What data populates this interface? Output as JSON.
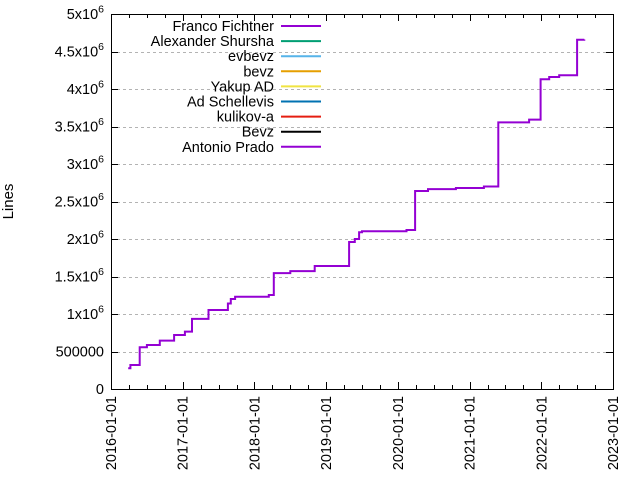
{
  "chart_data": {
    "type": "line",
    "step_mode": "post",
    "title": "",
    "xlabel": "",
    "ylabel": "Lines",
    "background_color": "#ffffff",
    "axis_color": "#000000",
    "text_color": "#000000",
    "x_axis": {
      "range_years": [
        2016,
        2023
      ],
      "tick_values_years": [
        2016,
        2017,
        2018,
        2019,
        2020,
        2021,
        2022,
        2023
      ],
      "tick_labels": [
        "2016-01-01",
        "2017-01-01",
        "2018-01-01",
        "2019-01-01",
        "2020-01-01",
        "2021-01-01",
        "2022-01-01",
        "2023-01-01"
      ],
      "minor_ticks_per_interval": 3,
      "labels_rotated_degrees": -90
    },
    "y_axis": {
      "range": [
        0,
        5000000
      ],
      "tick_values": [
        0,
        500000,
        1000000,
        1500000,
        2000000,
        2500000,
        3000000,
        3500000,
        4000000,
        4500000,
        5000000
      ],
      "tick_labels": [
        "0",
        "500000",
        "1x10^6",
        "1.5x10^6",
        "2x10^6",
        "2.5x10^6",
        "3x10^6",
        "3.5x10^6",
        "4x10^6",
        "4.5x10^6",
        "5x10^6"
      ]
    },
    "grid": {
      "horizontal": true,
      "vertical": false,
      "style": "dashed",
      "color": "#b3b3b3"
    },
    "legend": {
      "position": "top-left-inside",
      "entries": [
        {
          "label": "Franco Fichtner",
          "color": "#9400d3"
        },
        {
          "label": "Alexander Shursha",
          "color": "#009e73"
        },
        {
          "label": "evbevz",
          "color": "#56b4e9"
        },
        {
          "label": "bevz",
          "color": "#e69f00"
        },
        {
          "label": "Yakup AD",
          "color": "#f0e442"
        },
        {
          "label": "Ad Schellevis",
          "color": "#0072b2"
        },
        {
          "label": "kulikov-a",
          "color": "#e51e10"
        },
        {
          "label": "Bevz",
          "color": "#000000"
        },
        {
          "label": "Antonio Prado",
          "color": "#9400d3"
        }
      ]
    },
    "visible_series": {
      "color": "#9400d3",
      "points_year_value": [
        [
          2016.24,
          276000
        ],
        [
          2016.27,
          320000
        ],
        [
          2016.4,
          556000
        ],
        [
          2016.5,
          587000
        ],
        [
          2016.68,
          645000
        ],
        [
          2016.88,
          720000
        ],
        [
          2017.03,
          765000
        ],
        [
          2017.13,
          935000
        ],
        [
          2017.36,
          1053000
        ],
        [
          2017.63,
          1140000
        ],
        [
          2017.67,
          1200000
        ],
        [
          2017.73,
          1230000
        ],
        [
          2018.2,
          1253000
        ],
        [
          2018.27,
          1545000
        ],
        [
          2018.5,
          1572000
        ],
        [
          2018.84,
          1640000
        ],
        [
          2019.32,
          1960000
        ],
        [
          2019.4,
          2000000
        ],
        [
          2019.46,
          2090000
        ],
        [
          2019.5,
          2103000
        ],
        [
          2020.12,
          2120000
        ],
        [
          2020.24,
          2640000
        ],
        [
          2020.42,
          2665000
        ],
        [
          2020.81,
          2680000
        ],
        [
          2021.2,
          2700000
        ],
        [
          2021.4,
          3555000
        ],
        [
          2021.83,
          3592000
        ],
        [
          2021.99,
          4130000
        ],
        [
          2022.11,
          4160000
        ],
        [
          2022.25,
          4182000
        ],
        [
          2022.5,
          4658000
        ],
        [
          2022.6,
          4660000
        ]
      ]
    }
  }
}
